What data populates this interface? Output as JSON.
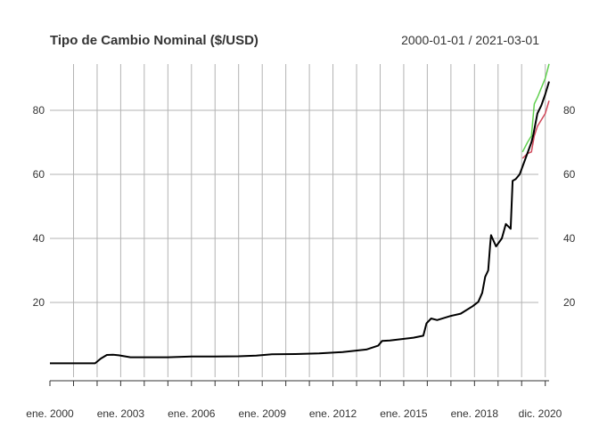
{
  "chart_data": {
    "type": "line",
    "title": "Tipo de Cambio Nominal ($/USD)",
    "period": "2000-01-01 / 2021-03-01",
    "xlim": [
      "2000-01-01",
      "2021-03-01"
    ],
    "ylim": [
      0,
      95
    ],
    "yticks": [
      20,
      40,
      60,
      80
    ],
    "yticks_labels": [
      "20",
      "40",
      "60",
      "80"
    ],
    "xtick_labels": [
      {
        "date": "2000-01-01",
        "label": "ene. 2000"
      },
      {
        "date": "2003-01-01",
        "label": "ene. 2003"
      },
      {
        "date": "2006-01-01",
        "label": "ene. 2006"
      },
      {
        "date": "2009-01-01",
        "label": "ene. 2009"
      },
      {
        "date": "2012-01-01",
        "label": "ene. 2012"
      },
      {
        "date": "2015-01-01",
        "label": "ene. 2015"
      },
      {
        "date": "2018-01-01",
        "label": "ene. 2018"
      },
      {
        "date": "2020-12-01",
        "label": "dic. 2020"
      }
    ],
    "grid": true,
    "axis_right": true,
    "series": [
      {
        "color": "#000000",
        "x": [
          "2000-01-01",
          "2001-12-01",
          "2002-03-01",
          "2002-06-01",
          "2002-09-01",
          "2002-12-01",
          "2003-06-01",
          "2004-01-01",
          "2005-01-01",
          "2006-01-01",
          "2007-01-01",
          "2008-01-01",
          "2008-10-01",
          "2009-06-01",
          "2010-06-01",
          "2011-06-01",
          "2012-06-01",
          "2013-06-01",
          "2013-12-01",
          "2014-02-01",
          "2014-06-01",
          "2015-06-01",
          "2015-11-01",
          "2015-12-20",
          "2016-03-01",
          "2016-06-01",
          "2017-01-01",
          "2017-06-01",
          "2017-12-01",
          "2018-03-01",
          "2018-05-01",
          "2018-06-15",
          "2018-08-01",
          "2018-08-31",
          "2018-09-15",
          "2018-12-01",
          "2019-03-01",
          "2019-05-01",
          "2019-07-15",
          "2019-08-15",
          "2019-10-01",
          "2019-12-01",
          "2020-03-01",
          "2020-06-01",
          "2020-07-01",
          "2020-09-01",
          "2020-11-01",
          "2021-01-01",
          "2021-03-01"
        ],
        "y": [
          1.0,
          1.0,
          2.5,
          3.6,
          3.7,
          3.5,
          2.9,
          2.9,
          2.9,
          3.1,
          3.1,
          3.2,
          3.4,
          3.8,
          3.9,
          4.1,
          4.5,
          5.3,
          6.5,
          8.0,
          8.1,
          9.0,
          9.6,
          13.5,
          15.0,
          14.5,
          15.8,
          16.5,
          18.8,
          20.2,
          23.0,
          28.0,
          30.0,
          38.0,
          41.0,
          37.5,
          40.0,
          44.5,
          43.0,
          58.0,
          58.5,
          60.0,
          65.0,
          70.0,
          72.5,
          79.0,
          81.5,
          85.0,
          89.0
        ]
      },
      {
        "color": "#d1495b",
        "x": [
          "2020-01-15",
          "2020-04-01",
          "2020-06-01",
          "2020-07-15",
          "2020-09-01",
          "2020-11-01",
          "2021-01-01",
          "2021-03-01"
        ],
        "y": [
          65.0,
          66.5,
          67.0,
          72.0,
          75.0,
          77.0,
          79.0,
          83.0
        ]
      },
      {
        "color": "#61d04f",
        "x": [
          "2020-01-15",
          "2020-04-01",
          "2020-06-01",
          "2020-07-15",
          "2020-09-01",
          "2020-11-01",
          "2021-01-01",
          "2021-03-01"
        ],
        "y": [
          67.0,
          70.0,
          72.0,
          82.0,
          84.0,
          87.0,
          90.0,
          94.5
        ]
      }
    ]
  }
}
